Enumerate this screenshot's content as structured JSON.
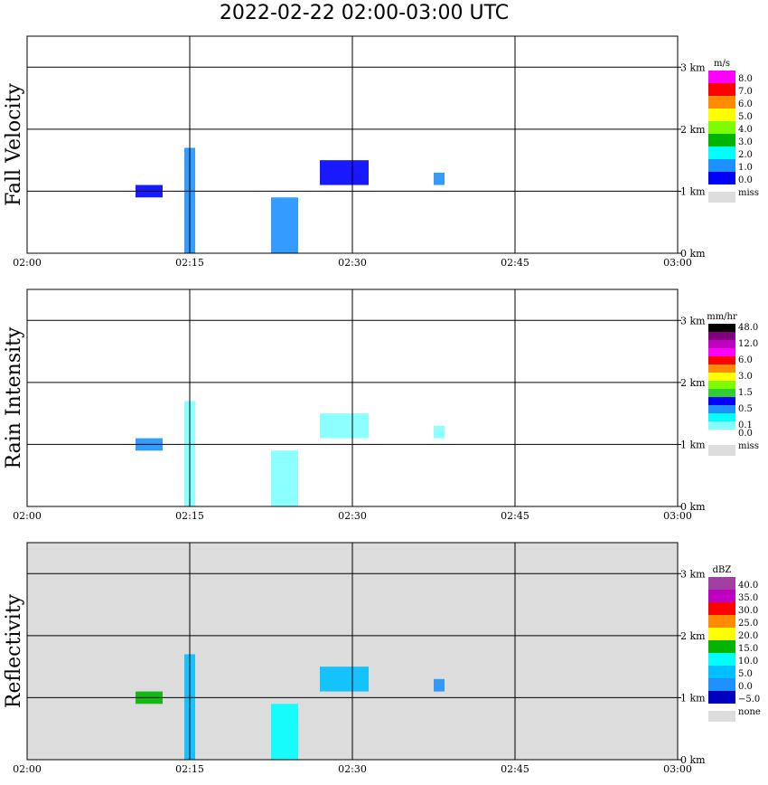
{
  "title": "2022-02-22   02:00-03:00 UTC",
  "chart_data": [
    {
      "type": "heatmap",
      "ylabel": "Fall Velocity",
      "xticks": [
        "02:00",
        "02:15",
        "02:30",
        "02:45",
        "03:00"
      ],
      "yticks": [
        "0 km",
        "1 km",
        "2 km",
        "3 km"
      ],
      "xlim_min": [
        0,
        60
      ],
      "ylim_km": [
        0,
        3.5
      ],
      "grid": true,
      "legend": {
        "unit": "m/s",
        "entries": [
          {
            "label": "8.0",
            "color": "#ff00ff"
          },
          {
            "label": "7.0",
            "color": "#ff0000"
          },
          {
            "label": "6.0",
            "color": "#ff8c00"
          },
          {
            "label": "5.0",
            "color": "#ffff00"
          },
          {
            "label": "4.0",
            "color": "#7cfc00"
          },
          {
            "label": "3.0",
            "color": "#00b400"
          },
          {
            "label": "2.0",
            "color": "#00ffff"
          },
          {
            "label": "1.0",
            "color": "#1e90ff"
          },
          {
            "label": "0.0",
            "color": "#0000ff"
          }
        ],
        "miss": {
          "label": "miss",
          "color": "#dcdcdc"
        }
      },
      "background": "#ffffff",
      "echoes": [
        {
          "t": [
            14.5,
            15.5
          ],
          "h": [
            0.0,
            1.7
          ],
          "color": "#1e90ff"
        },
        {
          "t": [
            10,
            12.5
          ],
          "h": [
            0.9,
            1.1
          ],
          "color": "#0000ff"
        },
        {
          "t": [
            22.5,
            25.0
          ],
          "h": [
            0.0,
            0.9
          ],
          "color": "#1e90ff"
        },
        {
          "t": [
            27.0,
            31.5
          ],
          "h": [
            1.1,
            1.5
          ],
          "color": "#0000ff"
        },
        {
          "t": [
            37.5,
            38.5
          ],
          "h": [
            1.1,
            1.3
          ],
          "color": "#1e90ff"
        }
      ]
    },
    {
      "type": "heatmap",
      "ylabel": "Rain Intensity",
      "xticks": [
        "02:00",
        "02:15",
        "02:30",
        "02:45",
        "03:00"
      ],
      "yticks": [
        "0 km",
        "1 km",
        "2 km",
        "3 km"
      ],
      "xlim_min": [
        0,
        60
      ],
      "ylim_km": [
        0,
        3.5
      ],
      "grid": true,
      "legend": {
        "unit": "mm/hr",
        "entries": [
          {
            "label": "48.0",
            "color": "#000000"
          },
          {
            "label": "",
            "color": "#800080"
          },
          {
            "label": "12.0",
            "color": "#c000c0"
          },
          {
            "label": "",
            "color": "#ff00ff"
          },
          {
            "label": "6.0",
            "color": "#ff0000"
          },
          {
            "label": "",
            "color": "#ff8c00"
          },
          {
            "label": "3.0",
            "color": "#ffff00"
          },
          {
            "label": "",
            "color": "#7cfc00"
          },
          {
            "label": "1.5",
            "color": "#32cd32"
          },
          {
            "label": "",
            "color": "#0000ff"
          },
          {
            "label": "0.5",
            "color": "#1e90ff"
          },
          {
            "label": "",
            "color": "#00ffff"
          },
          {
            "label": "0.1",
            "color": "#7fffff"
          },
          {
            "label": "0.0",
            "color": "#ffffff"
          }
        ],
        "miss": {
          "label": "miss",
          "color": "#dcdcdc"
        }
      },
      "background": "#ffffff",
      "echoes": [
        {
          "t": [
            14.5,
            15.5
          ],
          "h": [
            0.0,
            1.7
          ],
          "color": "#7fffff"
        },
        {
          "t": [
            10,
            12.5
          ],
          "h": [
            0.9,
            1.1
          ],
          "color": "#1e90ff"
        },
        {
          "t": [
            22.5,
            25.0
          ],
          "h": [
            0.0,
            0.9
          ],
          "color": "#7fffff"
        },
        {
          "t": [
            27.0,
            31.5
          ],
          "h": [
            1.1,
            1.5
          ],
          "color": "#7fffff"
        },
        {
          "t": [
            37.5,
            38.5
          ],
          "h": [
            1.1,
            1.3
          ],
          "color": "#7fffff"
        }
      ]
    },
    {
      "type": "heatmap",
      "ylabel": "Reflectivity",
      "xticks": [
        "02:00",
        "02:15",
        "02:30",
        "02:45",
        "03:00"
      ],
      "yticks": [
        "0 km",
        "1 km",
        "2 km",
        "3 km"
      ],
      "xlim_min": [
        0,
        60
      ],
      "ylim_km": [
        0,
        3.5
      ],
      "grid": true,
      "legend": {
        "unit": "dBZ",
        "entries": [
          {
            "label": "40.0",
            "color": "#a040a0"
          },
          {
            "label": "35.0",
            "color": "#c000c0"
          },
          {
            "label": "30.0",
            "color": "#ff0000"
          },
          {
            "label": "25.0",
            "color": "#ff8c00"
          },
          {
            "label": "20.0",
            "color": "#ffff00"
          },
          {
            "label": "15.0",
            "color": "#00b400"
          },
          {
            "label": "10.0",
            "color": "#00ffff"
          },
          {
            "label": "5.0",
            "color": "#00bfff"
          },
          {
            "label": "0.0",
            "color": "#1e90ff"
          },
          {
            "label": "−5.0",
            "color": "#0000c0"
          }
        ],
        "miss": {
          "label": "none",
          "color": "#dcdcdc"
        }
      },
      "background": "#dcdcdc",
      "echoes": [
        {
          "t": [
            14.5,
            15.5
          ],
          "h": [
            0.0,
            1.7
          ],
          "color": "#00bfff"
        },
        {
          "t": [
            10,
            12.5
          ],
          "h": [
            0.9,
            1.1
          ],
          "color": "#00b400"
        },
        {
          "t": [
            22.5,
            25.0
          ],
          "h": [
            0.0,
            0.9
          ],
          "color": "#00ffff"
        },
        {
          "t": [
            27.0,
            31.5
          ],
          "h": [
            1.1,
            1.5
          ],
          "color": "#00bfff"
        },
        {
          "t": [
            37.5,
            38.5
          ],
          "h": [
            1.1,
            1.3
          ],
          "color": "#1e90ff"
        }
      ]
    }
  ]
}
